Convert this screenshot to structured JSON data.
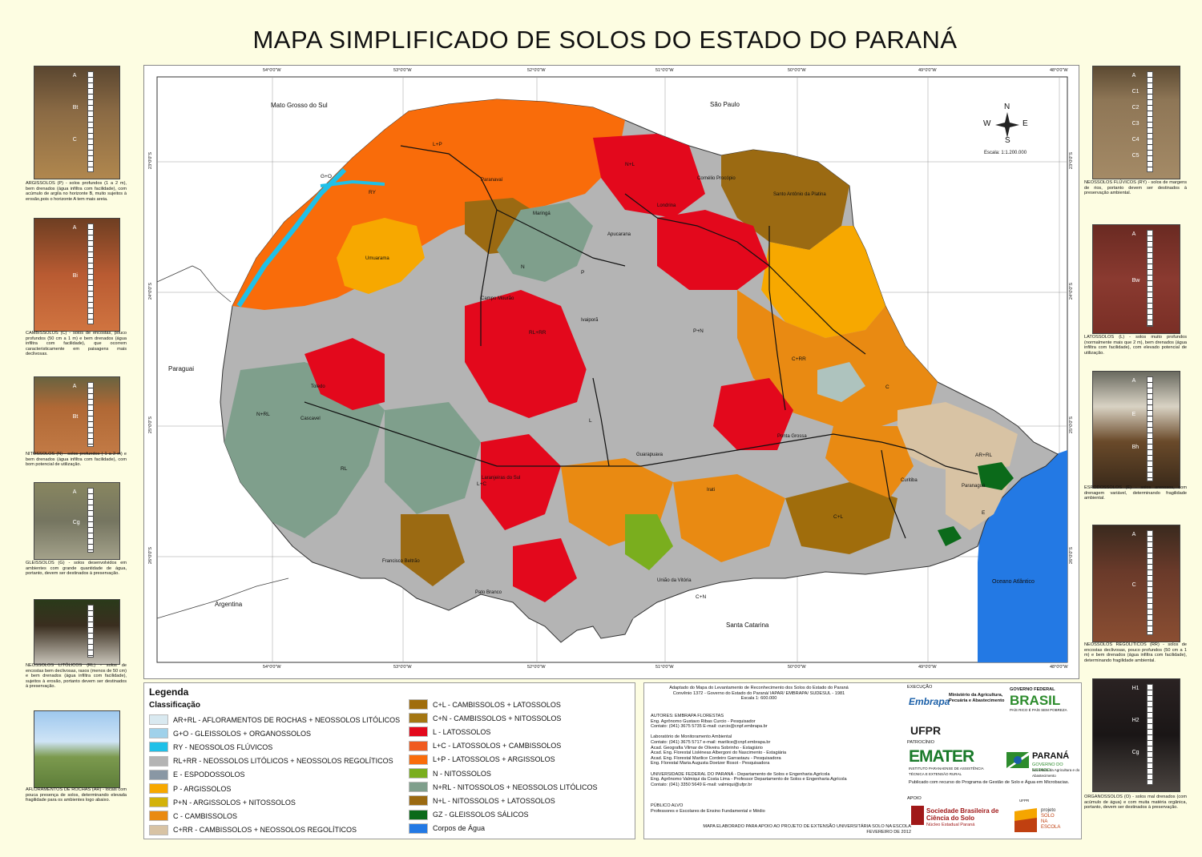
{
  "title": "MAPA SIMPLIFICADO DE SOLOS DO ESTADO DO PARANÁ",
  "photos_left": [
    {
      "caption": "ARGISSOLOS (P) - solos profundos (1 a 2 m), bem drenados (água infiltra com facilidade), com acúmulo de argila no horizonte B, muito sujeitos à erosão,pois o horizonte A tem mais areia.",
      "horizons": [
        "A",
        "Bt",
        "C"
      ]
    },
    {
      "caption": "CAMBISSOLOS (C) - solos de encostas, pouco profundos (50 cm a 1 m) e bem drenados (água infiltra com facilidade), que ocorrem caracteristicamente em paisagens mais declivosas.",
      "horizons": [
        "A",
        "Bi"
      ]
    },
    {
      "caption": "NITOSSOLOS (N) - solos profundos ( 1 a 2 m) e bem drenados (água infiltra com facilidade), com bom potencial de utilização.",
      "horizons": [
        "A",
        "Bt"
      ]
    },
    {
      "caption": "GLEISSOLOS (G) - solos desenvolvidos em ambientes com grande quantidade de água, portanto, devem ser destinados à preservação.",
      "horizons": [
        "A",
        "Cg"
      ]
    },
    {
      "caption": "NEOSSOLOS LITÓLICOS (RL) - solos de encostas bem declivosas, rasos (menos de 50 cm) e bem drenados (água infiltra com facilidade), sujeitos à erosão, portanto devem ser destinados à preservação.",
      "horizons": []
    },
    {
      "caption": "AFLORAMENTOS DE ROCHAS (AR) - locais com pouca presença de solos, determinando elevada fragilidade para os ambientes logo abaixo.",
      "horizons": []
    }
  ],
  "photos_right": [
    {
      "caption": "NEOSSOLOS FLÚVICOS (RY) - solos de margens de rios, portanto devem ser destinados à preservação ambiental.",
      "horizons": [
        "A",
        "C1",
        "C2",
        "C3",
        "C4",
        "C5"
      ]
    },
    {
      "caption": "LATOSSOLOS (L) - solos muito profundos (normalmente mais que 2 m), bem drenados (água infiltra com facilidade), com elevado potencial de utilização.",
      "horizons": [
        "A",
        "Bw"
      ]
    },
    {
      "caption": "ESPODOSSOLOS (E) - solos arenosos, com drenagem variável, determinando fragilidade ambiental.",
      "horizons": [
        "A",
        "E",
        "Bh"
      ]
    },
    {
      "caption": "NEOSSOLOS REGOLÍTICOS (RR) - solos de encostas declivosas, pouco profundos (50 cm a 1 m) e bem drenados (água infiltra com facilidade), determinando fragilidade ambiental.",
      "horizons": [
        "A",
        "C"
      ]
    },
    {
      "caption": "ORGANOSSOLOS (O) - solos mal drenados (com acúmulo de água) e com muita matéria orgânica, portanto, devem ser destinados à preservação.",
      "horizons": [
        "H1",
        "H2",
        "Cg"
      ]
    }
  ],
  "map": {
    "longitudes": [
      "54°0'0\"W",
      "53°0'0\"W",
      "52°0'0\"W",
      "51°0'0\"W",
      "50°0'0\"W",
      "49°0'0\"W",
      "48°0'0\"W"
    ],
    "latitudes": [
      "23°0'0\"S",
      "24°0'0\"S",
      "25°0'0\"S",
      "26°0'0\"S"
    ],
    "neighbors": [
      "Mato Grosso do Sul",
      "São Paulo",
      "Paraguai",
      "Argentina",
      "Santa Catarina",
      "Oceano Atlântico"
    ],
    "compass": {
      "n": "N",
      "s": "S",
      "e": "E",
      "w": "W"
    },
    "scale": "Escala:  1:1.200.000",
    "cities": [
      "Paranavaí",
      "Maringá",
      "Londrina",
      "Cornélio Procópio",
      "Santo Antônio da Platina",
      "Apucarana",
      "Umuarama",
      "Campo Mourão",
      "Ivaiporã",
      "Toledo",
      "Cascavel",
      "Guarapuava",
      "Laranjeiras do Sul",
      "Ponta Grossa",
      "Curitiba",
      "Paranaguá",
      "Irati",
      "Francisco Beltrão",
      "Pato Branco",
      "União da Vitória"
    ],
    "unit_labels": [
      "L+P",
      "N+L",
      "RY",
      "G+O",
      "N",
      "P",
      "L",
      "RL+RR",
      "N+RL",
      "C",
      "C+RR",
      "P+N",
      "L+C",
      "C+N",
      "AR+RL",
      "E",
      "C+L",
      "RL"
    ]
  },
  "legend": {
    "title": "Legenda",
    "subtitle": "Classificação",
    "col1": [
      {
        "label": "AR+RL -  AFLORAMENTOS DE ROCHAS + NEOSSOLOS LITÓLICOS",
        "color": "#d9e9f0"
      },
      {
        "label": "G+O - GLEISSOLOS + ORGANOSSOLOS",
        "color": "#9fd1ea"
      },
      {
        "label": "RY - NEOSSOLOS FLÚVICOS",
        "color": "#1fc0e8"
      },
      {
        "label": "RL+RR - NEOSSOLOS LITÓLICOS + NEOSSOLOS REGOLÍTICOS",
        "color": "#b4b4b4"
      },
      {
        "label": "E - ESPODOSSOLOS",
        "color": "#8997a4"
      },
      {
        "label": "P - ARGISSOLOS",
        "color": "#f7a800"
      },
      {
        "label": "P+N - ARGISSOLOS + NITOSSOLOS",
        "color": "#d3b20a"
      },
      {
        "label": "C - CAMBISSOLOS",
        "color": "#e98a12"
      },
      {
        "label": "C+RR - CAMBISSOLOS + NEOSSOLOS REGOLÍTICOS",
        "color": "#d8c3a4"
      }
    ],
    "col2": [
      {
        "label": "C+L - CAMBISSOLOS + LATOSSOLOS",
        "color": "#a06d0c"
      },
      {
        "label": "C+N - CAMBISSOLOS + NITOSSOLOS",
        "color": "#a47612"
      },
      {
        "label": "L - LATOSSOLOS",
        "color": "#e3081c"
      },
      {
        "label": "L+C - LATOSSOLOS + CAMBISSOLOS",
        "color": "#f05a1f"
      },
      {
        "label": "L+P - LATOSSOLOS + ARGISSOLOS",
        "color": "#f96c0a"
      },
      {
        "label": "N - NITOSSOLOS",
        "color": "#7aae1e"
      },
      {
        "label": "N+RL - NITOSSOLOS + NEOSSOLOS LITÓLICOS",
        "color": "#7f9f8c"
      },
      {
        "label": "N+L - NITOSSOLOS + LATOSSOLOS",
        "color": "#9b6a12"
      },
      {
        "label": "GZ - GLEISSOLOS SÁLICOS",
        "color": "#0b6a1a"
      },
      {
        "label": "Corpos de Água",
        "color": "#2379e4"
      }
    ]
  },
  "credits": {
    "source": [
      "Adaptado do Mapa do Levantamento de Reconhecimento dos Solos do Estado do Paraná",
      "Convênio 1372 - Governo do Estado do Paraná/ IAPAR/ EMBRAPA/ SUDESUL - 1981",
      "Escala  1: 600.000"
    ],
    "authors": [
      "AUTORES: EMBRAPA FLORESTAS",
      "Eng. Agrônomo Gustavo Ribas Curcio - Pesquisador",
      "Contato: (041) 3675 5735 E-mail: curcio@cnpf.embrapa.br",
      "",
      "Laboratório de Monitoramento Ambiental",
      "Contato: (041) 3675 5717 e-mail: marilice@cnpf.embrapa.br",
      "Acad. Geografia Vilmar de Oliveira Sobrinho - Estagiário",
      "Acad. Eng. Florestal Lisléneas Albergoni do Nascimento - Estagiária",
      "Acad. Eng. Florestal Marilice Cordeiro Garrastazu - Pesquisadora",
      "Eng. Florestal Maria Augusta Doetzer Rosot - Pesquisadora",
      "",
      "UNIVERSIDADE FEDERAL DO PARANÁ - Departamento de Solos e Engenharia Agrícola",
      "Eng. Agrônomo Valmiqui da Costa Lima - Professor Departamento de Solos e Engenharia Agrícola",
      "Contato: (041) 3350 5649 E-mail: valmiqui@ufpr.br"
    ],
    "audience": [
      "PÚBLICO ALVO",
      "Professores e Escolares de Ensino Fundamental e Médio"
    ],
    "footer": [
      "MAPA ELABORADO PARA APOIO AO PROJETO DE EXTENSÃO UNIVERSITÁRIA SOLO NA ESCOLA",
      "FEVEREIRO DE 2012"
    ],
    "execucao": "EXECUÇÃO",
    "patrocinio": "PATROCÍNIO",
    "apoio": "APOIO",
    "embrapa": "Embrapa",
    "ministerio": "Ministério da Agricultura, Pecuária e Abastecimento",
    "gov_federal": "GOVERNO FEDERAL",
    "brasil": "BRASIL",
    "brasil_sub": "PAÍS RICO É PAÍS SEM POBREZA",
    "ufpr": "UFPR",
    "emater": "EMATER",
    "emater_sub": "INSTITUTO PARANAENSE DE ASSISTÊNCIA TÉCNICA E EXTENSÃO RURAL",
    "parana": "PARANÁ",
    "parana_sub": "GOVERNO DO ESTADO",
    "parana_sub2": "Secretaria da Agricultura e do Abastecimento",
    "microbacias": "Publicado com recurso do Programa de Gestão de Solo e Água em Microbacias.",
    "sbcs": "Sociedade Brasileira de Ciência do Solo",
    "sbcs_sub": "Núcleo Estadual Paraná",
    "projeto": [
      "projeto",
      "SOLO",
      "NA",
      "ESCOLA"
    ],
    "ufpr_small": "UFPR"
  }
}
